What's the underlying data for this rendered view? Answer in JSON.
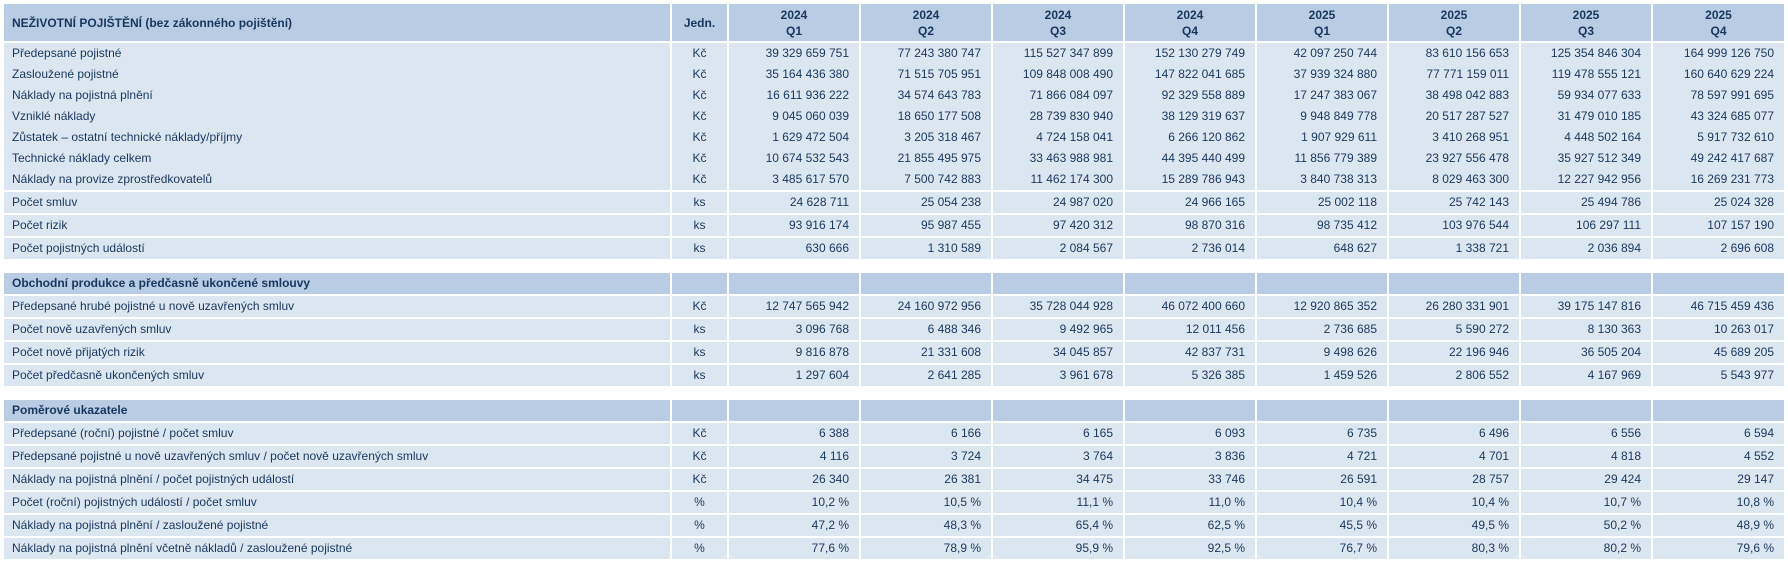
{
  "colors": {
    "header_bg": "#B8CCE4",
    "row_bg": "#DCE6F1",
    "text": "#17375E",
    "separator": "#FFFFFF"
  },
  "chart_data": {
    "type": "table",
    "title": "NEŽIVOTNÍ POJIŠTĚNÍ (bez zákonného pojištění)",
    "unit_column": "Jedn.",
    "columns": [
      {
        "year": "2024",
        "quarter": "Q1"
      },
      {
        "year": "2024",
        "quarter": "Q2"
      },
      {
        "year": "2024",
        "quarter": "Q3"
      },
      {
        "year": "2024",
        "quarter": "Q4"
      },
      {
        "year": "2025",
        "quarter": "Q1"
      },
      {
        "year": "2025",
        "quarter": "Q2"
      },
      {
        "year": "2025",
        "quarter": "Q3"
      },
      {
        "year": "2025",
        "quarter": "Q4"
      }
    ],
    "sections": [
      {
        "header": null,
        "rows": [
          {
            "label": "Předepsané pojistné",
            "unit": "Kč",
            "sep": false,
            "values": [
              "39 329 659 751",
              "77 243 380 747",
              "115 527 347 899",
              "152 130 279 749",
              "42 097 250 744",
              "83 610 156 653",
              "125 354 846 304",
              "164 999 126 750"
            ]
          },
          {
            "label": "Zasloužené pojistné",
            "unit": "Kč",
            "sep": false,
            "values": [
              "35 164 436 380",
              "71 515 705 951",
              "109 848 008 490",
              "147 822 041 685",
              "37 939 324 880",
              "77 771 159 011",
              "119 478 555 121",
              "160 640 629 224"
            ]
          },
          {
            "label": "Náklady na pojistná plnění",
            "unit": "Kč",
            "sep": false,
            "values": [
              "16 611 936 222",
              "34 574 643 783",
              "71 866 084 097",
              "92 329 558 889",
              "17 247 383 067",
              "38 498 042 883",
              "59 934 077 633",
              "78 597 991 695"
            ]
          },
          {
            "label": "Vzniklé náklady",
            "unit": "Kč",
            "sep": false,
            "values": [
              "9 045 060 039",
              "18 650 177 508",
              "28 739 830 940",
              "38 129 319 637",
              "9 948 849 778",
              "20 517 287 527",
              "31 479 010 185",
              "43 324 685 077"
            ]
          },
          {
            "label": "Zůstatek – ostatní technické náklady/příjmy",
            "unit": "Kč",
            "sep": false,
            "values": [
              "1 629 472 504",
              "3 205 318 467",
              "4 724 158 041",
              "6 266 120 862",
              "1 907 929 611",
              "3 410 268 951",
              "4 448 502 164",
              "5 917 732 610"
            ]
          },
          {
            "label": "Technické náklady celkem",
            "unit": "Kč",
            "sep": false,
            "values": [
              "10 674 532 543",
              "21 855 495 975",
              "33 463 988 981",
              "44 395 440 499",
              "11 856 779 389",
              "23 927 556 478",
              "35 927 512 349",
              "49 242 417 687"
            ]
          },
          {
            "label": "Náklady na provize zprostředkovatelů",
            "unit": "Kč",
            "sep": false,
            "values": [
              "3 485 617 570",
              "7 500 742 883",
              "11 462 174 300",
              "15 289 786 943",
              "3 840 738 313",
              "8 029 463 300",
              "12 227 942 956",
              "16 269 231 773"
            ]
          },
          {
            "label": "Počet smluv",
            "unit": "ks",
            "sep": true,
            "values": [
              "24 628 711",
              "25 054 238",
              "24 987 020",
              "24 966 165",
              "25 002 118",
              "25 742 143",
              "25 494 786",
              "25 024 328"
            ]
          },
          {
            "label": "Počet rizik",
            "unit": "ks",
            "sep": true,
            "values": [
              "93 916 174",
              "95 987 455",
              "97 420 312",
              "98 870 316",
              "98 735 412",
              "103 976 544",
              "106 297 111",
              "107 157 190"
            ]
          },
          {
            "label": "Počet pojistných událostí",
            "unit": "ks",
            "sep": true,
            "values": [
              "630 666",
              "1 310 589",
              "2 084 567",
              "2 736 014",
              "648 627",
              "1 338 721",
              "2 036 894",
              "2 696 608"
            ]
          }
        ]
      },
      {
        "header": "Obchodní produkce a předčasně ukončené smlouvy",
        "rows": [
          {
            "label": "Předepsané hrubé pojistné u nově uzavřených smluv",
            "unit": "Kč",
            "sep": true,
            "values": [
              "12 747 565 942",
              "24 160 972 956",
              "35 728 044 928",
              "46 072 400 660",
              "12 920 865 352",
              "26 280 331 901",
              "39 175 147 816",
              "46 715 459 436"
            ]
          },
          {
            "label": "Počet nově uzavřených smluv",
            "unit": "ks",
            "sep": true,
            "values": [
              "3 096 768",
              "6 488 346",
              "9 492 965",
              "12 011 456",
              "2 736 685",
              "5 590 272",
              "8 130 363",
              "10 263 017"
            ]
          },
          {
            "label": "Počet nově přijatých rizik",
            "unit": "ks",
            "sep": true,
            "values": [
              "9 816 878",
              "21 331 608",
              "34 045 857",
              "42 837 731",
              "9 498 626",
              "22 196 946",
              "36 505 204",
              "45 689 205"
            ]
          },
          {
            "label": "Počet předčasně ukončených smluv",
            "unit": "ks",
            "sep": true,
            "values": [
              "1 297 604",
              "2 641 285",
              "3 961 678",
              "5 326 385",
              "1 459 526",
              "2 806 552",
              "4 167 969",
              "5 543 977"
            ]
          }
        ]
      },
      {
        "header": "Poměrové ukazatele",
        "rows": [
          {
            "label": "Předepsané (roční) pojistné / počet smluv",
            "unit": "Kč",
            "sep": true,
            "values": [
              "6 388",
              "6 166",
              "6 165",
              "6 093",
              "6 735",
              "6 496",
              "6 556",
              "6 594"
            ]
          },
          {
            "label": "Předepsané pojistné u nově uzavřených smluv / počet nově uzavřených smluv",
            "unit": "Kč",
            "sep": true,
            "values": [
              "4 116",
              "3 724",
              "3 764",
              "3 836",
              "4 721",
              "4 701",
              "4 818",
              "4 552"
            ]
          },
          {
            "label": "Náklady na pojistná plnění / počet pojistných událostí",
            "unit": "Kč",
            "sep": true,
            "values": [
              "26 340",
              "26 381",
              "34 475",
              "33 746",
              "26 591",
              "28 757",
              "29 424",
              "29 147"
            ]
          },
          {
            "label": "Počet (roční) pojistných událostí / počet smluv",
            "unit": "%",
            "sep": true,
            "values": [
              "10,2 %",
              "10,5 %",
              "11,1 %",
              "11,0 %",
              "10,4 %",
              "10,4 %",
              "10,7 %",
              "10,8 %"
            ]
          },
          {
            "label": "Náklady na pojistná plnění / zasloužené pojistné",
            "unit": "%",
            "sep": true,
            "values": [
              "47,2 %",
              "48,3 %",
              "65,4 %",
              "62,5 %",
              "45,5 %",
              "49,5 %",
              "50,2 %",
              "48,9 %"
            ]
          },
          {
            "label": "Náklady na pojistná plnění včetně nákladů / zasloužené pojistné",
            "unit": "%",
            "sep": true,
            "values": [
              "77,6 %",
              "78,9 %",
              "95,9 %",
              "92,5 %",
              "76,7 %",
              "80,3 %",
              "80,2 %",
              "79,6 %"
            ]
          }
        ]
      }
    ]
  }
}
